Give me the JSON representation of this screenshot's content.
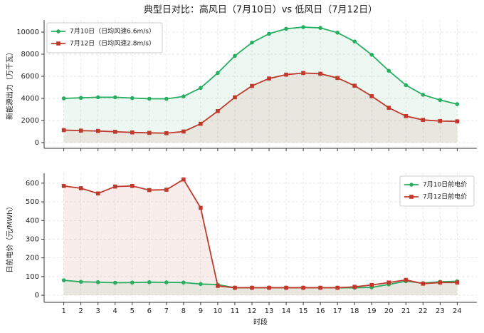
{
  "title": "典型日对比：高风日（7月10日）vs 低风日（7月12日）",
  "chart_data": [
    {
      "type": "line",
      "ylabel": "新能源出力（万千瓦）",
      "x": [
        1,
        2,
        3,
        4,
        5,
        6,
        7,
        8,
        9,
        10,
        11,
        12,
        13,
        14,
        15,
        16,
        17,
        18,
        19,
        20,
        21,
        22,
        23,
        24
      ],
      "series": [
        {
          "name": "7月10日（日均风速6.6m/s）",
          "color": "#27ae60",
          "marker": "circle",
          "fill": true,
          "values": [
            4000,
            4050,
            4100,
            4100,
            4030,
            3970,
            3960,
            4180,
            4950,
            6300,
            7850,
            9050,
            9850,
            10300,
            10450,
            10380,
            9950,
            9150,
            7950,
            6500,
            5200,
            4330,
            3850,
            3480
          ]
        },
        {
          "name": "7月12日（日均风速2.8m/s）",
          "color": "#c0392b",
          "marker": "square",
          "fill": true,
          "values": [
            1130,
            1080,
            1050,
            980,
            920,
            880,
            850,
            1000,
            1700,
            2850,
            4100,
            5130,
            5800,
            6150,
            6300,
            6230,
            5850,
            5150,
            4200,
            3150,
            2400,
            2050,
            1950,
            1920
          ]
        }
      ],
      "xlim": [
        -0.15,
        25.15
      ],
      "xticks": [
        1,
        2,
        3,
        4,
        5,
        6,
        7,
        8,
        9,
        10,
        11,
        12,
        13,
        14,
        15,
        16,
        17,
        18,
        19,
        20,
        21,
        22,
        23,
        24
      ],
      "xticklabels": false,
      "ylim": [
        -520,
        11100
      ],
      "yticks": [
        0,
        2000,
        4000,
        6000,
        8000,
        10000
      ],
      "grid": true,
      "legend": "upper left"
    },
    {
      "type": "line",
      "ylabel": "日前电价（元/MWh）",
      "xlabel": "时段",
      "x": [
        1,
        2,
        3,
        4,
        5,
        6,
        7,
        8,
        9,
        10,
        11,
        12,
        13,
        14,
        15,
        16,
        17,
        18,
        19,
        20,
        21,
        22,
        23,
        24
      ],
      "series": [
        {
          "name": "7月10日前电价",
          "color": "#27ae60",
          "marker": "circle",
          "fill": true,
          "values": [
            80,
            72,
            70,
            67,
            68,
            70,
            69,
            68,
            60,
            57,
            40,
            40,
            40,
            40,
            40,
            40,
            40,
            40,
            42,
            58,
            75,
            65,
            72,
            75
          ]
        },
        {
          "name": "7月12日前电价",
          "color": "#c0392b",
          "marker": "square",
          "fill": true,
          "values": [
            585,
            573,
            545,
            582,
            585,
            563,
            565,
            620,
            468,
            50,
            40,
            40,
            40,
            40,
            40,
            40,
            40,
            45,
            55,
            68,
            82,
            62,
            68,
            68
          ]
        }
      ],
      "xlim": [
        -0.15,
        25.15
      ],
      "xticks": [
        1,
        2,
        3,
        4,
        5,
        6,
        7,
        8,
        9,
        10,
        11,
        12,
        13,
        14,
        15,
        16,
        17,
        18,
        19,
        20,
        21,
        22,
        23,
        24
      ],
      "xticklabels": true,
      "ylim": [
        -38,
        653
      ],
      "yticks": [
        0,
        100,
        200,
        300,
        400,
        500,
        600
      ],
      "grid": true,
      "legend": "upper right"
    }
  ]
}
